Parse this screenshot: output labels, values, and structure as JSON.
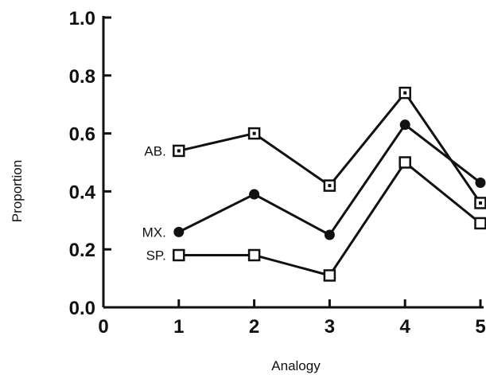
{
  "chart_data": {
    "type": "line",
    "xlabel": "Analogy",
    "ylabel": "Proportion",
    "xlim": [
      0,
      5
    ],
    "ylim": [
      0.0,
      1.0
    ],
    "xticks": [
      "0",
      "1",
      "2",
      "3",
      "4",
      "5"
    ],
    "yticks": [
      "0.0",
      "0.2",
      "0.4",
      "0.6",
      "0.8",
      "1.0"
    ],
    "grid": false,
    "x": [
      1,
      2,
      3,
      4,
      5
    ],
    "series": [
      {
        "name": "AB.",
        "marker": "square-dot",
        "values": [
          0.54,
          0.6,
          0.42,
          0.74,
          0.36
        ]
      },
      {
        "name": "MX.",
        "marker": "filled-circle",
        "values": [
          0.26,
          0.39,
          0.25,
          0.63,
          0.43
        ]
      },
      {
        "name": "SP.",
        "marker": "open-square",
        "values": [
          0.18,
          0.18,
          0.11,
          0.5,
          0.29
        ]
      }
    ]
  }
}
